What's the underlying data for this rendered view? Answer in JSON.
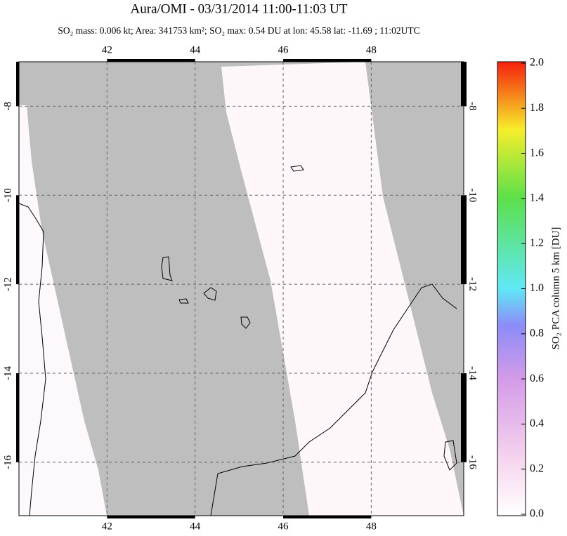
{
  "chart_data": {
    "type": "map",
    "title": "Aura/OMI - 03/31/2014 11:00-11:03 UT",
    "subtitle": "SO₂ mass: 0.006 kt; Area: 341753 km²; SO₂ max: 0.54 DU at lon: 45.58 lat: -11.69 ; 11:02UTC",
    "xlim": [
      40,
      50.1
    ],
    "xticks": [
      42,
      44,
      46,
      48
    ],
    "ylim": [
      -17.2,
      -7
    ],
    "yticks": [
      -8,
      -10,
      -12,
      -14,
      -16
    ],
    "grid": true,
    "colorbar": {
      "label": "SO₂ PCA column 5 km [DU]",
      "lim": [
        0,
        2
      ],
      "ticks": [
        {
          "value": 0,
          "label": "0.0"
        },
        {
          "value": 0.2,
          "label": "0.2"
        },
        {
          "value": 0.4,
          "label": "0.4"
        },
        {
          "value": 0.6,
          "label": "0.6"
        },
        {
          "value": 0.8,
          "label": "0.8"
        },
        {
          "value": 1,
          "label": "1.0"
        },
        {
          "value": 1.2,
          "label": "1.2"
        },
        {
          "value": 1.4,
          "label": "1.4"
        },
        {
          "value": 1.6,
          "label": "1.6"
        },
        {
          "value": 1.8,
          "label": "1.8"
        },
        {
          "value": 2,
          "label": "2.0"
        }
      ]
    }
  }
}
